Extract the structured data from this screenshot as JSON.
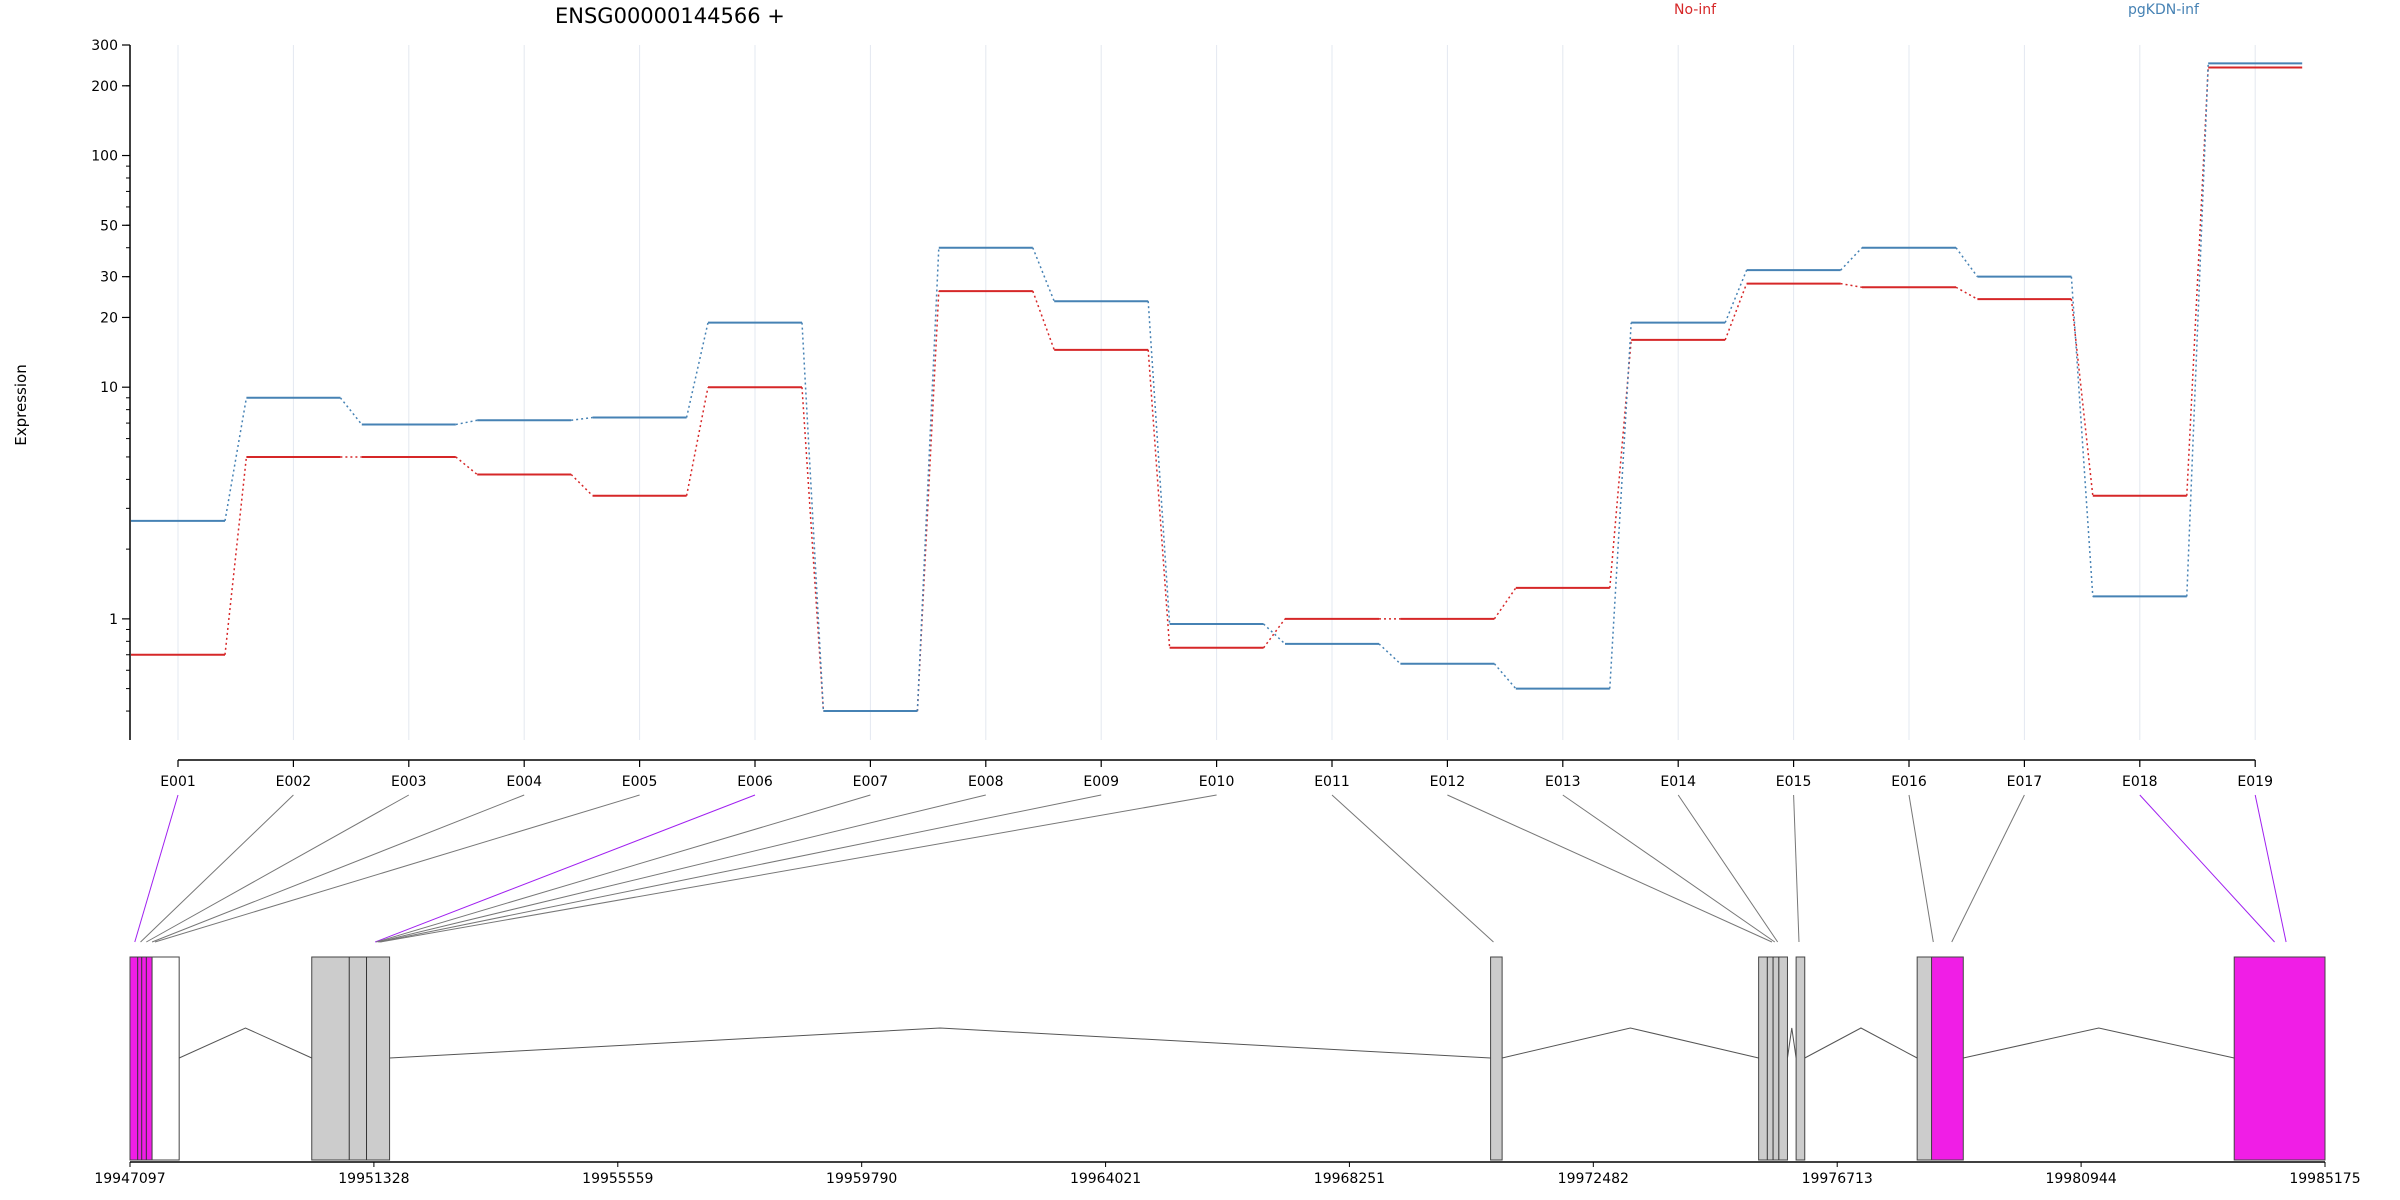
{
  "chart_data": {
    "type": "line",
    "title": "ENSG00000144566 +",
    "ylabel": "Expression",
    "yscale": "log",
    "ylim": [
      0.3,
      300
    ],
    "ytick_labels": [
      "1",
      "10",
      "20",
      "30",
      "50",
      "100",
      "200",
      "300"
    ],
    "categories": [
      "E001",
      "E002",
      "E003",
      "E004",
      "E005",
      "E006",
      "E007",
      "E008",
      "E009",
      "E010",
      "E011",
      "E012",
      "E013",
      "E014",
      "E015",
      "E016",
      "E017",
      "E018",
      "E019"
    ],
    "series": [
      {
        "name": "No-inf",
        "color": "#d62728",
        "values": [
          0.7,
          5.0,
          5.0,
          4.2,
          3.4,
          10.0,
          0.4,
          26.0,
          14.5,
          0.75,
          1.0,
          1.0,
          1.36,
          16.0,
          28.0,
          27.0,
          24.0,
          3.4,
          240.0
        ]
      },
      {
        "name": "pgKDN-inf",
        "color": "#4682b4",
        "values": [
          2.65,
          9.0,
          6.9,
          7.2,
          7.4,
          19.0,
          0.4,
          40.0,
          23.5,
          0.95,
          0.78,
          0.64,
          0.5,
          19.0,
          32.0,
          40.0,
          30.0,
          1.25,
          250.0
        ]
      }
    ],
    "highlighted_exons": [
      "E001",
      "E006",
      "E018",
      "E019"
    ],
    "gene_model": {
      "genomic_range": [
        19947097,
        19985175
      ],
      "axis_labels": [
        "19947097",
        "19951328",
        "19955559",
        "19959790",
        "19964021",
        "19968251",
        "19972482",
        "19976713",
        "19980944",
        "19985175"
      ],
      "exon_positions": [
        19947180,
        19947280,
        19947380,
        19947480,
        19947530,
        19951350,
        19951370,
        19951400,
        19951420,
        19951440,
        19970750,
        19975580,
        19975630,
        19975680,
        19976050,
        19978380,
        19978700,
        19984300,
        19984500
      ]
    }
  }
}
